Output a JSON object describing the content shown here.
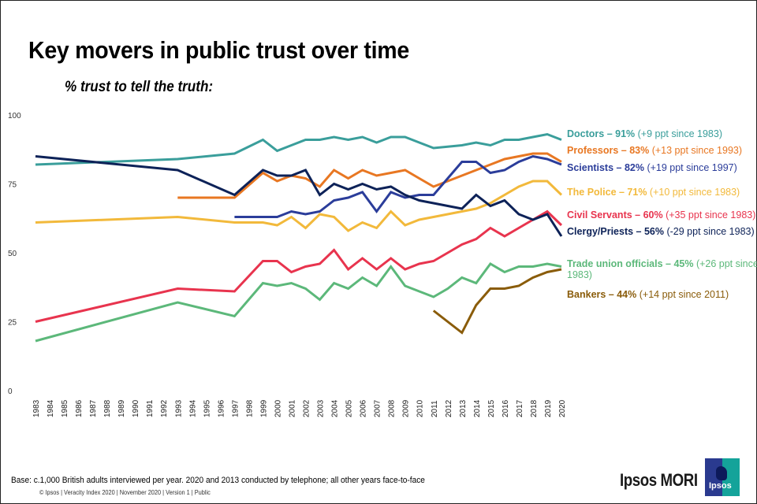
{
  "title": "Key movers in public trust over time",
  "subtitle": "% trust to tell the truth:",
  "footer": {
    "base": "Base: c.1,000 British adults interviewed per year. 2020 and 2013 conducted by telephone; all other years face-to-face",
    "copyright": "© Ipsos | Veracity Index 2020 | November 2020 | Version 1 | Public",
    "brand": "Ipsos MORI",
    "logo_text": "Ipsos"
  },
  "chart_data": {
    "type": "line",
    "title": "Key movers in public trust over time",
    "subtitle": "% trust to tell the truth:",
    "xlabel": "",
    "ylabel": "",
    "ylim": [
      0,
      100
    ],
    "yticks": [
      0,
      25,
      50,
      75,
      100
    ],
    "grid": false,
    "legend": "right (inline labels at line ends)",
    "categories": [
      "1983",
      "1984",
      "1985",
      "1986",
      "1987",
      "1988",
      "1989",
      "1990",
      "1991",
      "1992",
      "1993",
      "1994",
      "1995",
      "1996",
      "1997",
      "1998",
      "1999",
      "2000",
      "2001",
      "2002",
      "2003",
      "2004",
      "2005",
      "2006",
      "2007",
      "2008",
      "2009",
      "2010",
      "2011",
      "2012",
      "2013",
      "2014",
      "2015",
      "2016",
      "2017",
      "2018",
      "2019",
      "2020"
    ],
    "series": [
      {
        "name": "Doctors",
        "color": "#3a9e9b",
        "label_bold": "Doctors – 91%",
        "label_rest": " (+9 ppt since 1983)",
        "points": [
          [
            1983,
            82
          ],
          [
            1993,
            84
          ],
          [
            1997,
            86
          ],
          [
            1999,
            91
          ],
          [
            2000,
            87
          ],
          [
            2001,
            89
          ],
          [
            2002,
            91
          ],
          [
            2003,
            91
          ],
          [
            2004,
            92
          ],
          [
            2005,
            91
          ],
          [
            2006,
            92
          ],
          [
            2007,
            90
          ],
          [
            2008,
            92
          ],
          [
            2009,
            92
          ],
          [
            2010,
            90
          ],
          [
            2011,
            88
          ],
          [
            2012,
            88.5
          ],
          [
            2013,
            89
          ],
          [
            2014,
            90
          ],
          [
            2015,
            89
          ],
          [
            2016,
            91
          ],
          [
            2017,
            91
          ],
          [
            2018,
            92
          ],
          [
            2019,
            93
          ],
          [
            2020,
            91
          ]
        ]
      },
      {
        "name": "Professors",
        "color": "#e87722",
        "label_bold": "Professors – 83%",
        "label_rest": " (+13 ppt since 1993)",
        "points": [
          [
            1993,
            70
          ],
          [
            1997,
            70
          ],
          [
            1999,
            79
          ],
          [
            2000,
            76
          ],
          [
            2001,
            78
          ],
          [
            2002,
            77
          ],
          [
            2003,
            74
          ],
          [
            2004,
            80
          ],
          [
            2005,
            77
          ],
          [
            2006,
            80
          ],
          [
            2007,
            78
          ],
          [
            2008,
            79
          ],
          [
            2009,
            80
          ],
          [
            2010,
            77
          ],
          [
            2011,
            74
          ],
          [
            2012,
            76
          ],
          [
            2013,
            78
          ],
          [
            2014,
            80
          ],
          [
            2015,
            82
          ],
          [
            2016,
            84
          ],
          [
            2017,
            85
          ],
          [
            2018,
            86
          ],
          [
            2019,
            86
          ],
          [
            2020,
            83
          ]
        ]
      },
      {
        "name": "Scientists",
        "color": "#2b3d9a",
        "label_bold": "Scientists – 82%",
        "label_rest": " (+19 ppt since 1997)",
        "points": [
          [
            1997,
            63
          ],
          [
            1999,
            63
          ],
          [
            2000,
            63
          ],
          [
            2001,
            65
          ],
          [
            2002,
            64
          ],
          [
            2003,
            65
          ],
          [
            2004,
            69
          ],
          [
            2005,
            70
          ],
          [
            2006,
            72
          ],
          [
            2007,
            65
          ],
          [
            2008,
            72
          ],
          [
            2009,
            70
          ],
          [
            2010,
            71
          ],
          [
            2011,
            71
          ],
          [
            2012,
            77
          ],
          [
            2013,
            83
          ],
          [
            2014,
            83
          ],
          [
            2015,
            79
          ],
          [
            2016,
            80
          ],
          [
            2017,
            83
          ],
          [
            2018,
            85
          ],
          [
            2019,
            84
          ],
          [
            2020,
            82
          ]
        ]
      },
      {
        "name": "The Police",
        "color": "#f2b93b",
        "label_bold": "The Police – 71%",
        "label_rest": " (+10 ppt since 1983)",
        "points": [
          [
            1983,
            61
          ],
          [
            1993,
            63
          ],
          [
            1997,
            61
          ],
          [
            1999,
            61
          ],
          [
            2000,
            60
          ],
          [
            2001,
            63
          ],
          [
            2002,
            59
          ],
          [
            2003,
            64
          ],
          [
            2004,
            63
          ],
          [
            2005,
            58
          ],
          [
            2006,
            61
          ],
          [
            2007,
            59
          ],
          [
            2008,
            65
          ],
          [
            2009,
            60
          ],
          [
            2010,
            62
          ],
          [
            2011,
            63
          ],
          [
            2012,
            64
          ],
          [
            2013,
            65
          ],
          [
            2014,
            66
          ],
          [
            2015,
            68
          ],
          [
            2016,
            71
          ],
          [
            2017,
            74
          ],
          [
            2018,
            76
          ],
          [
            2019,
            76
          ],
          [
            2020,
            71
          ]
        ]
      },
      {
        "name": "Civil Servants",
        "color": "#e8344e",
        "label_bold": "Civil Servants – 60%",
        "label_rest": " (+35 ppt since 1983)",
        "points": [
          [
            1983,
            25
          ],
          [
            1993,
            37
          ],
          [
            1997,
            36
          ],
          [
            1999,
            47
          ],
          [
            2000,
            47
          ],
          [
            2001,
            43
          ],
          [
            2002,
            45
          ],
          [
            2003,
            46
          ],
          [
            2004,
            51
          ],
          [
            2005,
            44
          ],
          [
            2006,
            48
          ],
          [
            2007,
            44
          ],
          [
            2008,
            48
          ],
          [
            2009,
            44
          ],
          [
            2010,
            46
          ],
          [
            2011,
            47
          ],
          [
            2012,
            50
          ],
          [
            2013,
            53
          ],
          [
            2014,
            55
          ],
          [
            2015,
            59
          ],
          [
            2016,
            56
          ],
          [
            2017,
            59
          ],
          [
            2018,
            62
          ],
          [
            2019,
            65
          ],
          [
            2020,
            60
          ]
        ]
      },
      {
        "name": "Clergy/Priests",
        "color": "#0d2258",
        "label_bold": "Clergy/Priests – 56%",
        "label_rest": " (-29 ppt since 1983)",
        "points": [
          [
            1983,
            85
          ],
          [
            1993,
            80
          ],
          [
            1997,
            71
          ],
          [
            1999,
            80
          ],
          [
            2000,
            78
          ],
          [
            2001,
            78
          ],
          [
            2002,
            80
          ],
          [
            2003,
            71
          ],
          [
            2004,
            75
          ],
          [
            2005,
            73
          ],
          [
            2006,
            75
          ],
          [
            2007,
            73
          ],
          [
            2008,
            74
          ],
          [
            2009,
            71
          ],
          [
            2010,
            69
          ],
          [
            2011,
            68
          ],
          [
            2012,
            67
          ],
          [
            2013,
            66
          ],
          [
            2014,
            71
          ],
          [
            2015,
            67
          ],
          [
            2016,
            69
          ],
          [
            2017,
            64
          ],
          [
            2018,
            62
          ],
          [
            2019,
            64
          ],
          [
            2020,
            56
          ]
        ]
      },
      {
        "name": "Trade union officials",
        "color": "#5cb87a",
        "label_bold": "Trade union officials – 45%",
        "label_rest": " (+26 ppt since",
        "label_line2": "1983)",
        "points": [
          [
            1983,
            18
          ],
          [
            1993,
            32
          ],
          [
            1997,
            27
          ],
          [
            1999,
            39
          ],
          [
            2000,
            38
          ],
          [
            2001,
            39
          ],
          [
            2002,
            37
          ],
          [
            2003,
            33
          ],
          [
            2004,
            39
          ],
          [
            2005,
            37
          ],
          [
            2006,
            41
          ],
          [
            2007,
            38
          ],
          [
            2008,
            45
          ],
          [
            2009,
            38
          ],
          [
            2010,
            36
          ],
          [
            2011,
            34
          ],
          [
            2012,
            37
          ],
          [
            2013,
            41
          ],
          [
            2014,
            39
          ],
          [
            2015,
            46
          ],
          [
            2016,
            43
          ],
          [
            2017,
            45
          ],
          [
            2018,
            45
          ],
          [
            2019,
            46
          ],
          [
            2020,
            45
          ]
        ]
      },
      {
        "name": "Bankers",
        "color": "#8a5c0a",
        "label_bold": "Bankers – 44%",
        "label_rest": " (+14 ppt since 2011)",
        "points": [
          [
            2011,
            29
          ],
          [
            2013,
            21
          ],
          [
            2014,
            31
          ],
          [
            2015,
            37
          ],
          [
            2016,
            37
          ],
          [
            2017,
            38
          ],
          [
            2018,
            41
          ],
          [
            2019,
            43
          ],
          [
            2020,
            44
          ]
        ]
      }
    ]
  }
}
